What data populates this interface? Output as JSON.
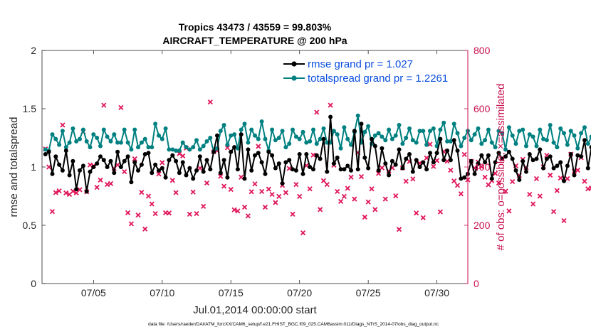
{
  "chart_data": {
    "type": "line",
    "title": "Tropics 43473 / 43559 = 99.803%",
    "subtitle": "AIRCRAFT_TEMPERATURE @ 200 hPa",
    "xlabel": "Jul.01,2014 00:00:00 start",
    "ylabel": "rmse and totalspread",
    "ylabel_right": "# of obs: o=possible; ×=assimilated",
    "footnote": "data file: /Users/raeder/DAI/ATM_forcXX/CAM6_setup/f.e21.FHIST_BGC.f09_025.CAM6assim.011/Diags_NTrS_2014-07/obs_diag_output.nc",
    "x_unit": "days since Jul 01 2014",
    "xlim": [
      0.25,
      31.25
    ],
    "ylim": [
      0,
      2
    ],
    "ylim_right": [
      0,
      800
    ],
    "x_ticks": [
      4,
      9,
      14,
      19,
      24,
      29
    ],
    "x_tick_labels": [
      "07/05",
      "07/10",
      "07/15",
      "07/20",
      "07/25",
      "07/30"
    ],
    "y_ticks": [
      0,
      0.5,
      1,
      1.5,
      2
    ],
    "y_tick_labels": [
      "0",
      "0.5",
      "1",
      "1.5",
      "2"
    ],
    "y_ticks_right": [
      0,
      200,
      400,
      600,
      800
    ],
    "y_tick_labels_right": [
      "0",
      "200",
      "400",
      "600",
      "800"
    ],
    "legend_position": "top-right",
    "colors": {
      "rmse": "#000000",
      "spread": "#008080",
      "obs": "#e0185a",
      "right_axis": "#c8104f",
      "legend_text": "#0a4fe0"
    },
    "series": [
      {
        "name": "rmse grand pr = 1.027",
        "color": "#000000",
        "x_start": 0.5,
        "x_step": 0.25,
        "values": [
          1.11,
          1.13,
          0.94,
          1.09,
          1.02,
          0.97,
          1.14,
          0.93,
          1.05,
          0.81,
          0.97,
          1.01,
          0.79,
          0.96,
          1.0,
          1.03,
          1.09,
          1.06,
          1.0,
          1.05,
          0.95,
          1.13,
          1.0,
          1.05,
          1.09,
          0.87,
          1.04,
          0.97,
          1.02,
          1.11,
          1.12,
          0.95,
          1.02,
          0.97,
          0.99,
          0.91,
          1.06,
          1.1,
          1.05,
          0.95,
          1.04,
          0.93,
          0.99,
          0.9,
          0.97,
          1.09,
          0.96,
          1.06,
          0.98,
          1.13,
          1.27,
          0.95,
          1.06,
          0.91,
          1.13,
          1.17,
          0.98,
          1.28,
          0.9,
          1.15,
          0.97,
          1.1,
          1.12,
          1.04,
          0.94,
          1.13,
          1.1,
          0.99,
          1.03,
          0.86,
          1.04,
          1.06,
          0.98,
          0.97,
          1.11,
          0.94,
          1.11,
          1.0,
          0.98,
          1.1,
          1.07,
          1.24,
          0.96,
          1.43,
          1.03,
          1.08,
          0.98,
          0.98,
          1.01,
          0.97,
          1.31,
          0.98,
          1.37,
          1.08,
          0.99,
          1.24,
          1.18,
          0.97,
          1.16,
          1.03,
          0.93,
          1.05,
          1.02,
          1.15,
          0.99,
          1.07,
          1.11,
          0.96,
          1.06,
          1.0,
          1.04,
          0.98,
          1.12,
          1.04,
          1.12,
          1.24,
          1.06,
          1.14,
          1.06,
          1.23,
          1.14,
          0.9,
          0.91,
          0.94,
          1.05,
          0.94,
          1.03,
          1.1,
          1.04,
          1.1,
          0.9,
          1.04,
          1.12,
          1.07,
          1.09,
          1.13,
          1.07,
          0.97,
          0.89,
          1.05,
          0.96,
          1.11,
          1.06,
          1.07,
          1.15,
          0.99,
          1.07,
          1.09,
          0.99,
          1.01,
          1.04,
          0.88,
          1.01,
          1.11,
          0.93,
          1.1,
          1.09,
          1.23,
          0.99,
          1.17,
          0.93,
          1.03,
          0.94,
          1.25,
          0.9,
          0.99,
          1.05,
          0.87,
          1.11,
          0.95,
          1.06,
          0.93,
          0.83,
          1.05,
          1.04,
          0.94,
          1.04,
          1.16,
          1.11,
          1.18,
          0.99,
          1.02,
          1.0,
          0.96,
          1.0
        ]
      },
      {
        "name": "totalspread grand pr = 1.2261",
        "color": "#008080",
        "x_start": 0.5,
        "x_step": 0.25,
        "values": [
          1.15,
          1.14,
          1.28,
          1.24,
          1.19,
          1.31,
          1.17,
          1.21,
          1.33,
          1.22,
          1.24,
          1.32,
          1.22,
          1.17,
          1.28,
          1.25,
          1.18,
          1.32,
          1.26,
          1.22,
          1.28,
          1.21,
          1.21,
          1.32,
          1.21,
          1.15,
          1.32,
          1.17,
          1.21,
          1.24,
          1.17,
          1.17,
          1.37,
          1.27,
          1.24,
          1.33,
          1.15,
          1.15,
          1.14,
          1.14,
          1.21,
          1.17,
          1.15,
          1.17,
          1.23,
          1.15,
          1.18,
          1.22,
          1.25,
          1.13,
          1.16,
          1.31,
          1.36,
          1.19,
          1.27,
          1.28,
          1.16,
          1.32,
          1.37,
          1.21,
          1.32,
          1.27,
          1.24,
          1.39,
          1.24,
          1.14,
          1.32,
          1.23,
          1.25,
          1.31,
          1.17,
          1.2,
          1.32,
          1.26,
          1.24,
          1.3,
          1.21,
          1.22,
          1.32,
          1.2,
          1.24,
          1.33,
          1.21,
          1.21,
          1.31,
          1.28,
          1.16,
          1.34,
          1.24,
          1.19,
          1.3,
          1.44,
          1.21,
          1.3,
          1.35,
          1.2,
          1.27,
          1.29,
          1.26,
          1.23,
          1.32,
          1.24,
          1.27,
          1.36,
          1.2,
          1.25,
          1.33,
          1.23,
          1.21,
          1.31,
          1.31,
          1.19,
          1.31,
          1.33,
          1.18,
          1.32,
          1.38,
          1.22,
          1.22,
          1.37,
          1.29,
          1.18,
          1.25,
          1.31,
          1.23,
          1.28,
          1.33,
          1.2,
          1.23,
          1.32,
          1.21,
          1.17,
          1.31,
          1.29,
          1.15,
          1.34,
          1.27,
          1.2,
          1.31,
          1.32,
          1.18,
          1.28,
          1.26,
          1.18,
          1.32,
          1.24,
          1.23,
          1.36,
          1.21,
          1.17,
          1.33,
          1.29,
          1.19,
          1.31,
          1.27,
          1.16,
          1.29,
          1.34,
          1.2,
          1.26,
          1.33,
          1.19,
          1.25,
          1.33,
          1.17,
          1.22,
          1.38,
          1.24,
          1.19,
          1.36,
          1.27,
          1.21,
          1.31,
          1.3,
          1.16,
          1.29,
          1.31,
          1.2,
          1.26,
          1.42,
          1.23,
          1.31,
          1.3
        ]
      },
      {
        "name": "obs_possible",
        "color": "#e0185a",
        "axis": "right",
        "x_start": 0.5,
        "x_step": 0.25,
        "values": [
          462,
          400,
          247,
          312,
          318,
          544,
          311,
          306,
          317,
          311,
          322,
          521,
          315,
          407,
          404,
          330,
          355,
          612,
          340,
          343,
          395,
          407,
          604,
          384,
          243,
          205,
          428,
          235,
          313,
          187,
          300,
          273,
          240,
          376,
          415,
          243,
          242,
          354,
          312,
          446,
          438,
          465,
          238,
          314,
          240,
          396,
          265,
          345,
          623,
          452,
          456,
          368,
          334,
          466,
          323,
          253,
          249,
          365,
          262,
          232,
          315,
          342,
          471,
          316,
          262,
          324,
          306,
          278,
          299,
          337,
          312,
          395,
          238,
          340,
          299,
          174,
          405,
          325,
          441,
          588,
          254,
          353,
          340,
          612,
          406,
          316,
          282,
          299,
          327,
          365,
          290,
          449,
          367,
          228,
          280,
          325,
          254,
          378,
          397,
          290,
          386,
          397,
          301,
          186,
          397,
          351,
          419,
          359,
          242,
          413,
          226,
          431,
          478,
          402,
          422,
          246,
          453,
          420,
          389,
          352,
          337,
          308,
          443,
          356,
          420,
          396,
          417,
          401,
          365,
          339,
          353,
          378,
          345,
          427,
          317,
          249,
          350,
          404,
          371,
          426,
          398,
          306,
          273,
          360,
          300,
          400,
          440,
          372,
          247,
          319,
          362,
          216,
          360,
          444,
          385,
          389,
          432,
          351,
          325,
          328,
          387,
          375,
          307,
          470,
          335,
          370,
          331,
          329,
          237,
          276,
          364,
          230,
          321,
          324,
          449,
          232,
          244,
          346,
          465,
          443,
          319
        ]
      }
    ]
  }
}
